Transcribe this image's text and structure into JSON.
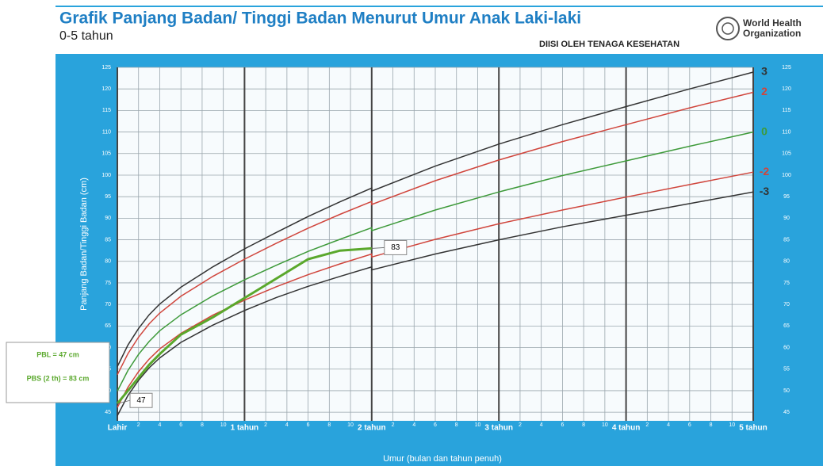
{
  "header": {
    "title": "Grafik Panjang Badan/ Tinggi Badan Menurut Umur Anak Laki-laki",
    "subtitle": "0-5 tahun",
    "note": "DIISI OLEH TENAGA KESEHATAN",
    "org": [
      "World Health",
      "Organization"
    ]
  },
  "chart_data": {
    "type": "line",
    "x_label": "Umur (bulan dan tahun penuh)",
    "y_label": "Panjang Badan/Tinggi Badan (cm)",
    "x": [
      0,
      1,
      2,
      3,
      4,
      6,
      9,
      12,
      15,
      18,
      21,
      24,
      24,
      30,
      36,
      42,
      48,
      54,
      60
    ],
    "xlim": [
      0,
      60
    ],
    "xticks": [
      {
        "value": 0,
        "label": "Lahir"
      },
      2,
      4,
      6,
      8,
      10,
      {
        "value": 12,
        "label": "1 tahun"
      },
      {
        "value": 14,
        "label": "2"
      },
      {
        "value": 16,
        "label": "4"
      },
      {
        "value": 18,
        "label": "6"
      },
      {
        "value": 20,
        "label": "8"
      },
      {
        "value": 22,
        "label": "10"
      },
      {
        "value": 24,
        "label": "2 tahun"
      },
      {
        "value": 26,
        "label": "2"
      },
      {
        "value": 28,
        "label": "4"
      },
      {
        "value": 30,
        "label": "6"
      },
      {
        "value": 32,
        "label": "8"
      },
      {
        "value": 34,
        "label": "10"
      },
      {
        "value": 36,
        "label": "3 tahun"
      },
      {
        "value": 38,
        "label": "2"
      },
      {
        "value": 40,
        "label": "4"
      },
      {
        "value": 42,
        "label": "6"
      },
      {
        "value": 44,
        "label": "8"
      },
      {
        "value": 46,
        "label": "10"
      },
      {
        "value": 48,
        "label": "4 tahun"
      },
      {
        "value": 50,
        "label": "2"
      },
      {
        "value": 52,
        "label": "4"
      },
      {
        "value": 54,
        "label": "6"
      },
      {
        "value": 56,
        "label": "8"
      },
      {
        "value": 58,
        "label": "10"
      },
      {
        "value": 60,
        "label": "5 tahun"
      }
    ],
    "ylim": [
      43,
      125
    ],
    "yticks": [
      45,
      50,
      55,
      60,
      65,
      70,
      75,
      80,
      85,
      90,
      95,
      100,
      105,
      110,
      115,
      120,
      125
    ],
    "grid": true,
    "series": [
      {
        "name": "3",
        "color": "#333333",
        "values": [
          55.6,
          60.6,
          64.4,
          67.6,
          70.1,
          74.0,
          78.7,
          82.9,
          86.7,
          90.4,
          93.8,
          97.0,
          96.3,
          102.1,
          107.2,
          111.7,
          115.9,
          120.0,
          123.9
        ]
      },
      {
        "name": "2",
        "color": "#d0453c",
        "values": [
          53.7,
          58.6,
          62.4,
          65.5,
          68.0,
          71.9,
          76.5,
          80.5,
          84.2,
          87.7,
          90.9,
          93.9,
          93.2,
          98.7,
          103.5,
          107.8,
          111.7,
          115.6,
          119.2
        ]
      },
      {
        "name": "0",
        "color": "#3e9a3a",
        "values": [
          49.9,
          54.7,
          58.4,
          61.4,
          63.9,
          67.6,
          72.0,
          75.7,
          79.1,
          82.3,
          85.1,
          87.8,
          87.1,
          91.9,
          96.1,
          99.9,
          103.3,
          106.7,
          110.0
        ]
      },
      {
        "name": "-2",
        "color": "#d0453c",
        "values": [
          46.1,
          50.8,
          54.4,
          57.3,
          59.7,
          63.3,
          67.5,
          71.0,
          74.1,
          76.9,
          79.4,
          81.7,
          81.0,
          85.1,
          88.7,
          91.9,
          94.9,
          97.8,
          100.7
        ]
      },
      {
        "name": "-3",
        "color": "#333333",
        "values": [
          44.2,
          48.9,
          52.4,
          55.3,
          57.6,
          61.2,
          65.2,
          68.6,
          71.6,
          74.2,
          76.5,
          78.7,
          78.0,
          81.7,
          85.0,
          88.0,
          90.7,
          93.4,
          96.1
        ]
      },
      {
        "color": "#5aa82c",
        "values": [
          47,
          50,
          53,
          56,
          58.5,
          63,
          67,
          71.5,
          76,
          80.5,
          82.5,
          83,
          null,
          null,
          null,
          null,
          null,
          null,
          null
        ]
      }
    ],
    "annotations": [
      "PBL = 47 cm",
      "PBS (2 th) = 83 cm"
    ]
  }
}
